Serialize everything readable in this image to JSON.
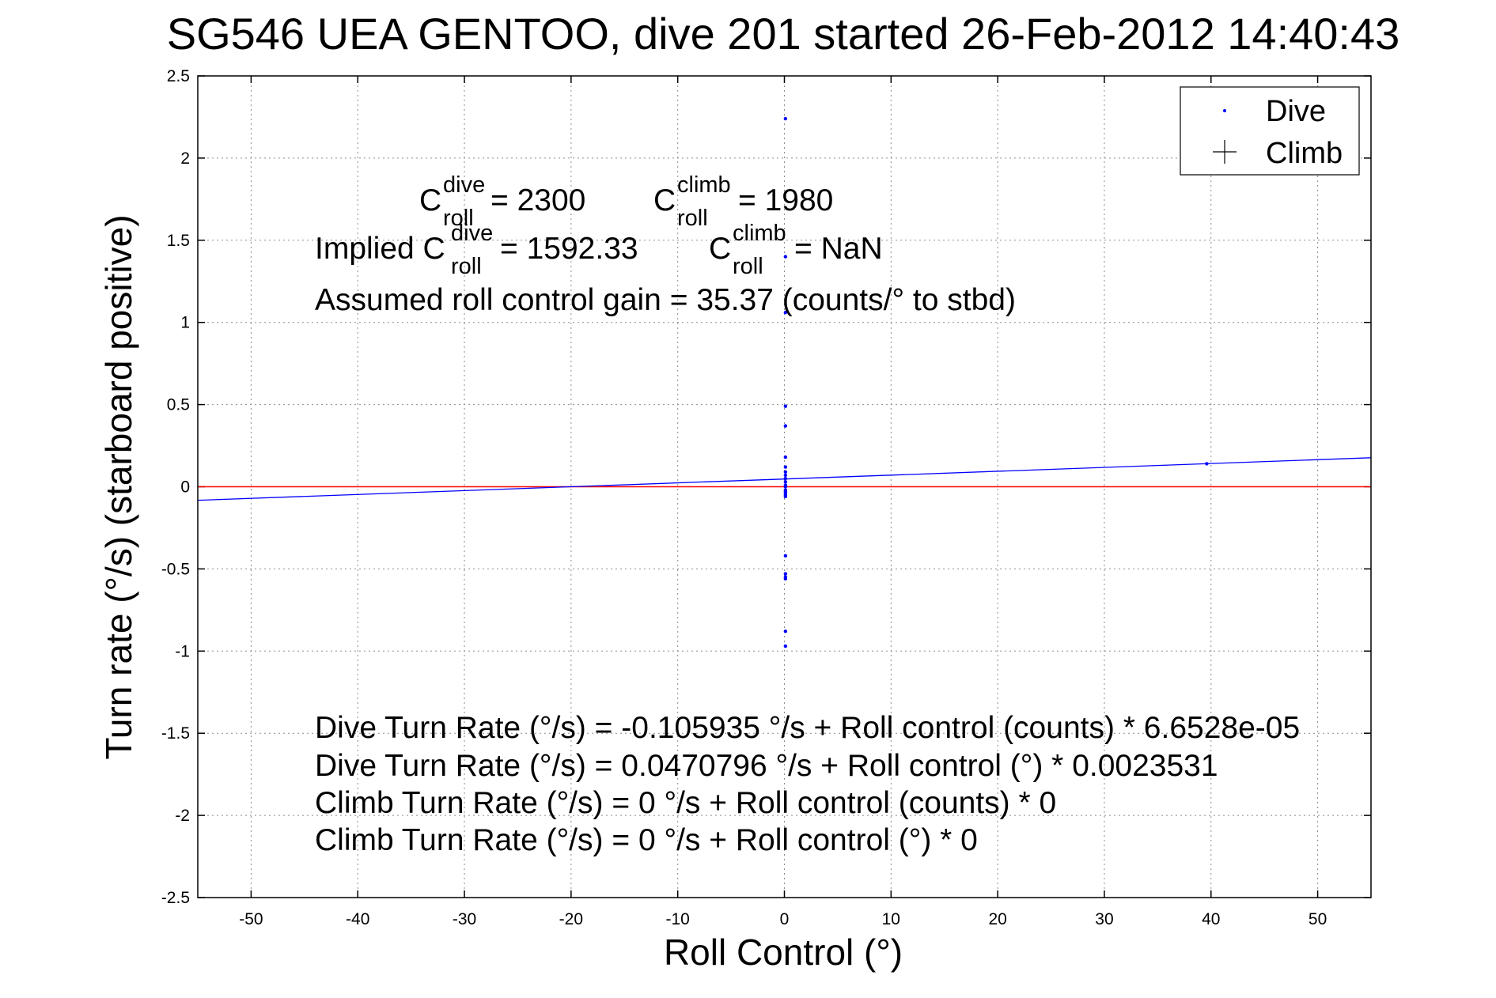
{
  "chart_data": {
    "type": "scatter",
    "title": "SG546 UEA GENTOO, dive 201 started 26-Feb-2012 14:40:43",
    "xlabel": "Roll Control (°)",
    "ylabel": "Turn rate (°/s) (starboard positive)",
    "xlim": [
      -55,
      55
    ],
    "ylim": [
      -2.5,
      2.5
    ],
    "xticks": [
      -50,
      -40,
      -30,
      -20,
      -10,
      0,
      10,
      20,
      30,
      40,
      50
    ],
    "yticks": [
      -2.5,
      -2,
      -1.5,
      -1,
      -0.5,
      0,
      0.5,
      1,
      1.5,
      2,
      2.5
    ],
    "grid": true,
    "legend_position": "top-right",
    "colors": {
      "dive": "#0000ff",
      "zero_line": "#ff0000",
      "climb": "#000000"
    },
    "series": [
      {
        "name": "Dive",
        "marker": "dot",
        "x": [
          0.1,
          0.1,
          0.1,
          0.1,
          0.1,
          0.1,
          0.1,
          0.1,
          0.1,
          0.1,
          0.1,
          0.1,
          0.1,
          0.1,
          0.1,
          0.1,
          0.1,
          0.1,
          0.1,
          0.1,
          0.1,
          0.1,
          0.1,
          0.1,
          39.6
        ],
        "y": [
          2.24,
          1.4,
          1.06,
          0.49,
          0.37,
          0.18,
          0.12,
          0.09,
          0.07,
          0.05,
          0.03,
          0.01,
          0.0,
          -0.02,
          -0.03,
          -0.04,
          -0.05,
          -0.06,
          -0.42,
          -0.53,
          -0.55,
          -0.56,
          -0.88,
          -0.97,
          0.14
        ]
      },
      {
        "name": "Climb",
        "marker": "plus",
        "x": [],
        "y": []
      }
    ],
    "lines": [
      {
        "id": "dive-fit",
        "kind": "fit",
        "intercept": 0.0470796,
        "slope": 0.0023531
      },
      {
        "id": "zero-line",
        "kind": "reference",
        "y": 0
      }
    ]
  },
  "annotations": {
    "c_roll_dive": {
      "base": "C",
      "sup": "dive",
      "sub": "roll",
      "value": " = 2300"
    },
    "c_roll_climb": {
      "base": "C",
      "sup": "climb",
      "sub": "roll",
      "value": " = 1980"
    },
    "implied_dive": {
      "prefix": "Implied C",
      "sup": "dive",
      "sub": "roll",
      "value": " = 1592.33"
    },
    "implied_climb": {
      "base": "C",
      "sup": "climb",
      "sub": "roll",
      "value": " = NaN"
    },
    "gain": "Assumed roll control gain = 35.37 (counts/° to stbd)",
    "equations": [
      "Dive Turn Rate (°/s) = -0.105935 °/s + Roll control (counts) * 6.6528e-05",
      "Dive Turn Rate (°/s) = 0.0470796 °/s + Roll control (°) * 0.0023531",
      "Climb Turn Rate (°/s) = 0 °/s + Roll control (counts) * 0",
      "Climb Turn Rate (°/s) = 0 °/s + Roll control (°) * 0"
    ]
  }
}
